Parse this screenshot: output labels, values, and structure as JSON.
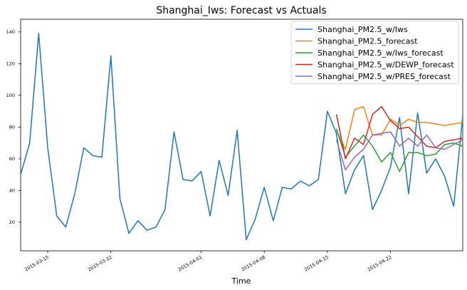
{
  "chart_data": {
    "type": "line",
    "title": "Shanghai_Iws: Forecast vs Actuals",
    "xlabel": "Time",
    "ylabel": "",
    "x_start": "2015-03-12",
    "xlim": [
      "2015-03-12",
      "2015-04-30"
    ],
    "ylim": [
      2,
      148
    ],
    "yticks": [
      20,
      40,
      60,
      80,
      100,
      120,
      140
    ],
    "xticks": [
      "2015-03-15",
      "2015-03-22",
      "2015-04-01",
      "2015-04-08",
      "2015-04-15",
      "2015-04-22"
    ],
    "legend_position": "top-right",
    "grid": false,
    "series": [
      {
        "name": "Shanghai_PM2.5_w/Iws",
        "color": "#1f77b4",
        "x": [
          "2015-03-12",
          "2015-03-13",
          "2015-03-14",
          "2015-03-15",
          "2015-03-16",
          "2015-03-17",
          "2015-03-18",
          "2015-03-19",
          "2015-03-20",
          "2015-03-21",
          "2015-03-22",
          "2015-03-23",
          "2015-03-24",
          "2015-03-25",
          "2015-03-26",
          "2015-03-27",
          "2015-03-28",
          "2015-03-29",
          "2015-03-30",
          "2015-03-31",
          "2015-04-01",
          "2015-04-02",
          "2015-04-03",
          "2015-04-04",
          "2015-04-05",
          "2015-04-06",
          "2015-04-07",
          "2015-04-08",
          "2015-04-09",
          "2015-04-10",
          "2015-04-11",
          "2015-04-12",
          "2015-04-13",
          "2015-04-14",
          "2015-04-15",
          "2015-04-16",
          "2015-04-17",
          "2015-04-18",
          "2015-04-19",
          "2015-04-20",
          "2015-04-21",
          "2015-04-22",
          "2015-04-23",
          "2015-04-24",
          "2015-04-25",
          "2015-04-26",
          "2015-04-27",
          "2015-04-28",
          "2015-04-29",
          "2015-04-30"
        ],
        "values": [
          50,
          70,
          139,
          67,
          24,
          17,
          38,
          67,
          62,
          61,
          125,
          35,
          13,
          21,
          15,
          17,
          28,
          77,
          47,
          46,
          52,
          24,
          59,
          37,
          78,
          9,
          22,
          42,
          21,
          42,
          41,
          46,
          43,
          47,
          90,
          76,
          38,
          53,
          62,
          28,
          40,
          55,
          86,
          38,
          89,
          51,
          60,
          49,
          30,
          87
        ]
      },
      {
        "name": "Shanghai_PM2.5_forecast",
        "color": "#ff7f0e",
        "x": [
          "2015-04-16",
          "2015-04-17",
          "2015-04-18",
          "2015-04-19",
          "2015-04-20",
          "2015-04-21",
          "2015-04-22",
          "2015-04-23",
          "2015-04-24",
          "2015-04-25",
          "2015-04-26",
          "2015-04-27",
          "2015-04-28",
          "2015-04-29",
          "2015-04-30"
        ],
        "values": [
          78,
          66,
          91,
          93,
          75,
          75,
          85,
          81,
          85,
          83,
          83,
          82,
          81,
          82,
          83
        ]
      },
      {
        "name": "Shanghai_PM2.5_w/Iws_forecast",
        "color": "#2ca02c",
        "x": [
          "2015-04-16",
          "2015-04-17",
          "2015-04-18",
          "2015-04-19",
          "2015-04-20",
          "2015-04-21",
          "2015-04-22",
          "2015-04-23",
          "2015-04-24",
          "2015-04-25",
          "2015-04-26",
          "2015-04-27",
          "2015-04-28",
          "2015-04-29",
          "2015-04-30"
        ],
        "values": [
          79,
          61,
          68,
          75,
          68,
          58,
          64,
          52,
          64,
          64,
          62,
          63,
          69,
          70,
          68
        ]
      },
      {
        "name": "Shanghai_PM2.5_w/DEWP_forecast",
        "color": "#d62728",
        "x": [
          "2015-04-16",
          "2015-04-17",
          "2015-04-18",
          "2015-04-19",
          "2015-04-20",
          "2015-04-21",
          "2015-04-22",
          "2015-04-23",
          "2015-04-24",
          "2015-04-25",
          "2015-04-26",
          "2015-04-27",
          "2015-04-28",
          "2015-04-29",
          "2015-04-30"
        ],
        "values": [
          88,
          60,
          73,
          69,
          88,
          93,
          84,
          79,
          80,
          74,
          68,
          67,
          71,
          72,
          73
        ]
      },
      {
        "name": "Shanghai_PM2.5_w/PRES_forecast",
        "color": "#9467bd",
        "x": [
          "2015-04-16",
          "2015-04-17",
          "2015-04-18",
          "2015-04-19",
          "2015-04-20",
          "2015-04-21",
          "2015-04-22",
          "2015-04-23",
          "2015-04-24",
          "2015-04-25",
          "2015-04-26",
          "2015-04-27",
          "2015-04-28",
          "2015-04-29",
          "2015-04-30"
        ],
        "values": [
          72,
          53,
          61,
          66,
          75,
          76,
          77,
          68,
          73,
          68,
          75,
          67,
          66,
          69,
          72
        ]
      }
    ]
  }
}
